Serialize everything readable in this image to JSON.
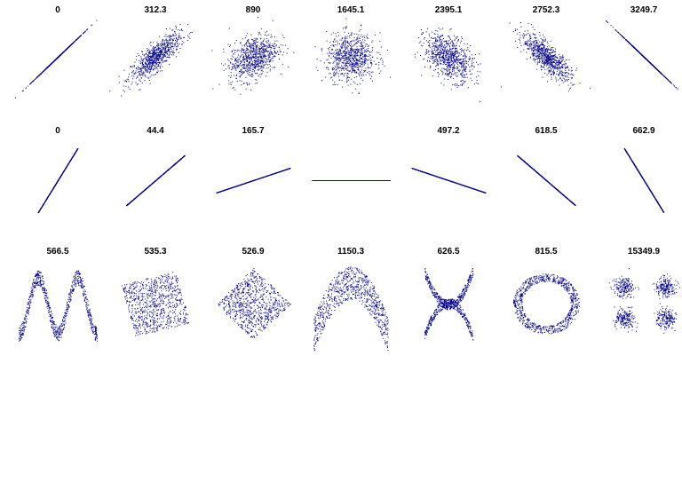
{
  "chart_data": [
    {
      "type": "scatter",
      "title": "0",
      "pattern": "linear",
      "r": 1.0
    },
    {
      "type": "scatter",
      "title": "312.3",
      "pattern": "linear",
      "r": 0.8
    },
    {
      "type": "scatter",
      "title": "890",
      "pattern": "linear",
      "r": 0.4
    },
    {
      "type": "scatter",
      "title": "1645.1",
      "pattern": "linear",
      "r": 0.0
    },
    {
      "type": "scatter",
      "title": "2395.1",
      "pattern": "linear",
      "r": -0.4
    },
    {
      "type": "scatter",
      "title": "2752.3",
      "pattern": "linear",
      "r": -0.8
    },
    {
      "type": "scatter",
      "title": "3249.7",
      "pattern": "linear",
      "r": -1.0
    },
    {
      "type": "scatter",
      "title": "0",
      "pattern": "line",
      "slope": 1.7
    },
    {
      "type": "scatter",
      "title": "44.4",
      "pattern": "line",
      "slope": 0.9
    },
    {
      "type": "scatter",
      "title": "165.7",
      "pattern": "line",
      "slope": 0.35
    },
    {
      "type": "scatter",
      "title": "",
      "pattern": "line",
      "slope": 0.0
    },
    {
      "type": "scatter",
      "title": "497.2",
      "pattern": "line",
      "slope": -0.35
    },
    {
      "type": "scatter",
      "title": "618.5",
      "pattern": "line",
      "slope": -0.9
    },
    {
      "type": "scatter",
      "title": "662.9",
      "pattern": "line",
      "slope": -1.7
    },
    {
      "type": "scatter",
      "title": "566.5",
      "pattern": "wave"
    },
    {
      "type": "scatter",
      "title": "535.3",
      "pattern": "rotated-square"
    },
    {
      "type": "scatter",
      "title": "526.9",
      "pattern": "diamond"
    },
    {
      "type": "scatter",
      "title": "1150.3",
      "pattern": "parabola"
    },
    {
      "type": "scatter",
      "title": "626.5",
      "pattern": "x-shape"
    },
    {
      "type": "scatter",
      "title": "815.5",
      "pattern": "ring"
    },
    {
      "type": "scatter",
      "title": "15349.9",
      "pattern": "four-clusters"
    }
  ],
  "colors": {
    "points": "#00008b",
    "background": "#ffffff",
    "title": "#000000"
  }
}
